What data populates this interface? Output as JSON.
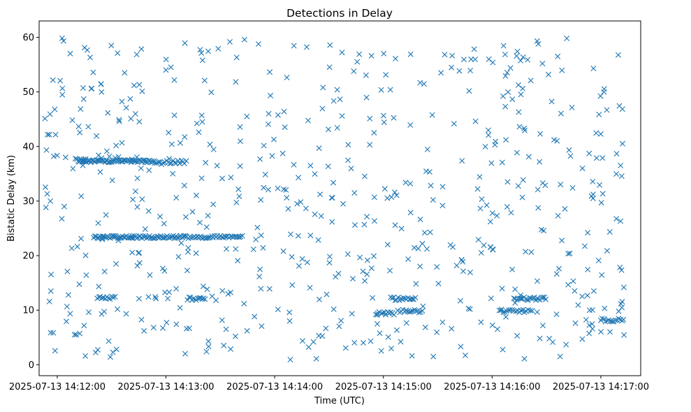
{
  "chart_data": {
    "type": "scatter",
    "title": "Detections in Delay",
    "xlabel": "Time (UTC)",
    "ylabel": "Bistatic Delay (km)",
    "marker": "x",
    "color": "#1f77b4",
    "xlim_seconds": [
      -10,
      322
    ],
    "ylim": [
      -2,
      63
    ],
    "x_ticks": [
      {
        "seconds": 0,
        "label": "2025-07-13 14:12:00"
      },
      {
        "seconds": 60,
        "label": "2025-07-13 14:13:00"
      },
      {
        "seconds": 120,
        "label": "2025-07-13 14:14:00"
      },
      {
        "seconds": 180,
        "label": "2025-07-13 14:15:00"
      },
      {
        "seconds": 240,
        "label": "2025-07-13 14:16:00"
      },
      {
        "seconds": 300,
        "label": "2025-07-13 14:17:00"
      }
    ],
    "y_ticks": [
      0,
      10,
      20,
      30,
      40,
      50,
      60
    ],
    "time_origin": "2025-07-13 14:12:00",
    "data_range_seconds": [
      -7,
      313
    ],
    "tracks": [
      {
        "t_start": 12,
        "t_end": 54,
        "delay": 37.3,
        "spacing": 0.6,
        "jitter": 0.25
      },
      {
        "t_start": 54,
        "t_end": 72,
        "delay": 37.1,
        "spacing": 0.9,
        "jitter": 0.4
      },
      {
        "t_start": 10,
        "t_end": 16,
        "delay": 37.5,
        "spacing": 0.8,
        "jitter": 0.3
      },
      {
        "t_start": 20,
        "t_end": 70,
        "delay": 23.4,
        "spacing": 0.7,
        "jitter": 0.25
      },
      {
        "t_start": 70,
        "t_end": 102,
        "delay": 23.4,
        "spacing": 0.8,
        "jitter": 0.25
      },
      {
        "t_start": 22,
        "t_end": 32,
        "delay": 12.3,
        "spacing": 0.9,
        "jitter": 0.25
      },
      {
        "t_start": 72,
        "t_end": 82,
        "delay": 12.1,
        "spacing": 0.8,
        "jitter": 0.3
      },
      {
        "t_start": 176,
        "t_end": 186,
        "delay": 9.4,
        "spacing": 0.9,
        "jitter": 0.3
      },
      {
        "t_start": 184,
        "t_end": 198,
        "delay": 12.1,
        "spacing": 0.8,
        "jitter": 0.3
      },
      {
        "t_start": 188,
        "t_end": 202,
        "delay": 9.8,
        "spacing": 0.9,
        "jitter": 0.3
      },
      {
        "t_start": 244,
        "t_end": 262,
        "delay": 9.8,
        "spacing": 1.0,
        "jitter": 0.3
      },
      {
        "t_start": 252,
        "t_end": 270,
        "delay": 12.1,
        "spacing": 0.8,
        "jitter": 0.3
      },
      {
        "t_start": 300,
        "t_end": 313,
        "delay": 8.2,
        "spacing": 0.9,
        "jitter": 0.3
      }
    ],
    "background_count": 620
  }
}
